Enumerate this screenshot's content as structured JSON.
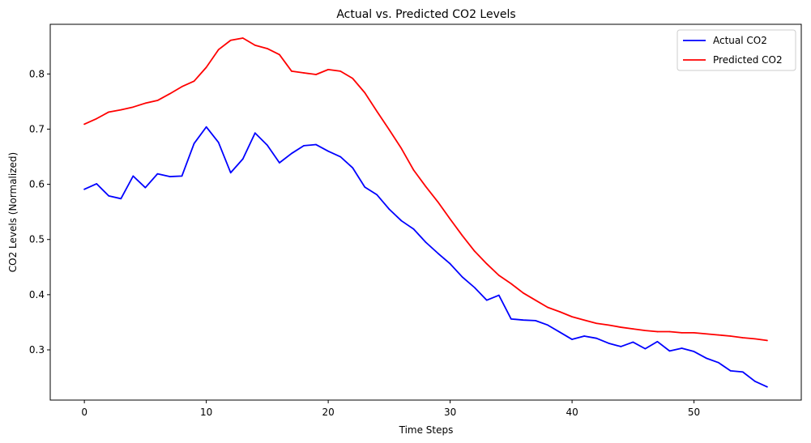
{
  "chart_data": {
    "type": "line",
    "title": "Actual vs. Predicted CO2 Levels",
    "xlabel": "Time Steps",
    "ylabel": "CO2 Levels (Normalized)",
    "xlim": [
      -2.8,
      58.8
    ],
    "ylim": [
      0.209,
      0.89
    ],
    "xticks": [
      0,
      10,
      20,
      30,
      40,
      50
    ],
    "yticks": [
      0.3,
      0.4,
      0.5,
      0.6,
      0.7,
      0.8
    ],
    "grid": false,
    "legend_position": "top-right",
    "x": [
      0,
      1,
      2,
      3,
      4,
      5,
      6,
      7,
      8,
      9,
      10,
      11,
      12,
      13,
      14,
      15,
      16,
      17,
      18,
      19,
      20,
      21,
      22,
      23,
      24,
      25,
      26,
      27,
      28,
      29,
      30,
      31,
      32,
      33,
      34,
      35,
      36,
      37,
      38,
      39,
      40,
      41,
      42,
      43,
      44,
      45,
      46,
      47,
      48,
      49,
      50,
      51,
      52,
      53,
      54,
      55,
      56
    ],
    "series": [
      {
        "name": "Actual CO2",
        "color": "#0000ff",
        "values": [
          0.591,
          0.601,
          0.579,
          0.574,
          0.615,
          0.594,
          0.619,
          0.614,
          0.615,
          0.674,
          0.704,
          0.676,
          0.621,
          0.646,
          0.693,
          0.671,
          0.639,
          0.656,
          0.67,
          0.672,
          0.66,
          0.65,
          0.63,
          0.595,
          0.581,
          0.555,
          0.534,
          0.519,
          0.495,
          0.475,
          0.456,
          0.432,
          0.413,
          0.39,
          0.399,
          0.356,
          0.354,
          0.353,
          0.345,
          0.332,
          0.319,
          0.325,
          0.321,
          0.312,
          0.306,
          0.314,
          0.302,
          0.315,
          0.298,
          0.303,
          0.297,
          0.285,
          0.277,
          0.262,
          0.26,
          0.243,
          0.233
        ]
      },
      {
        "name": "Predicted CO2",
        "color": "#ff0000",
        "values": [
          0.709,
          0.719,
          0.731,
          0.735,
          0.74,
          0.747,
          0.752,
          0.764,
          0.777,
          0.787,
          0.812,
          0.844,
          0.861,
          0.865,
          0.852,
          0.846,
          0.835,
          0.805,
          0.802,
          0.799,
          0.808,
          0.805,
          0.792,
          0.766,
          0.732,
          0.699,
          0.665,
          0.626,
          0.596,
          0.568,
          0.537,
          0.507,
          0.479,
          0.456,
          0.435,
          0.42,
          0.403,
          0.39,
          0.377,
          0.369,
          0.36,
          0.354,
          0.348,
          0.345,
          0.341,
          0.338,
          0.335,
          0.333,
          0.333,
          0.331,
          0.331,
          0.329,
          0.327,
          0.325,
          0.322,
          0.32,
          0.317
        ]
      }
    ]
  }
}
